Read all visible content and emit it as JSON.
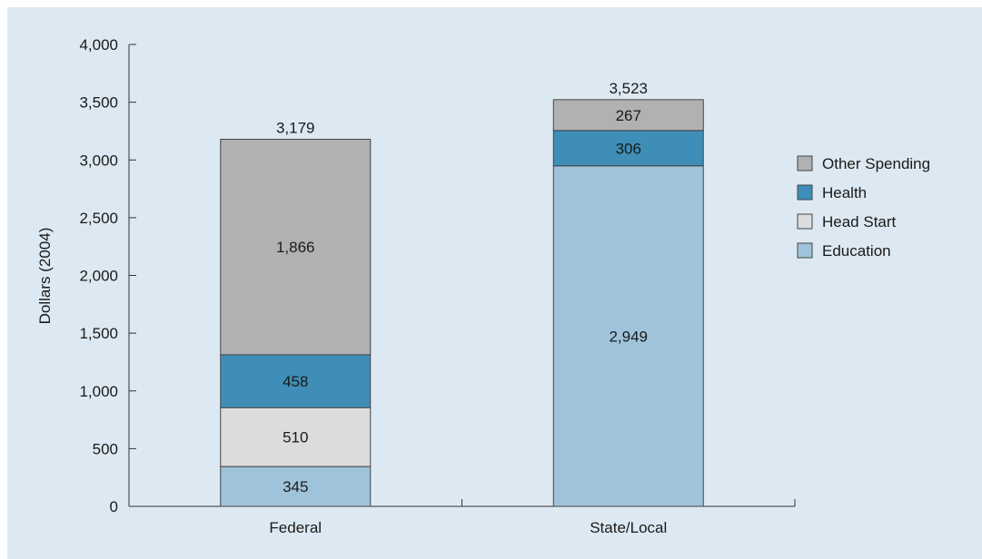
{
  "chart_data": {
    "type": "bar",
    "stacked": true,
    "categories": [
      "Federal",
      "State/Local"
    ],
    "series": [
      {
        "name": "Education",
        "values": [
          345,
          2949
        ],
        "color": "#9fc3da",
        "label_color": "#1a1a1a"
      },
      {
        "name": "Head Start",
        "values": [
          510,
          0
        ],
        "color": "#dcdcdc",
        "label_color": "#1a1a1a"
      },
      {
        "name": "Health",
        "values": [
          458,
          306
        ],
        "color": "#3e8eb7",
        "label_color": "#ffffff"
      },
      {
        "name": "Other Spending",
        "values": [
          1866,
          267
        ],
        "color": "#b1b1b3",
        "label_color": "#1a1a1a"
      }
    ],
    "totals": [
      "3,179",
      "3,523"
    ],
    "ylabel": "Dollars (2004)",
    "xlabel": "",
    "ylim": [
      0,
      4000
    ],
    "yticks": [
      "0",
      "500",
      "1,000",
      "1,500",
      "2,000",
      "2,500",
      "3,000",
      "3,500",
      "4,000"
    ],
    "legend": {
      "position": "right",
      "order": [
        "Other Spending",
        "Health",
        "Head Start",
        "Education"
      ]
    },
    "grid": false,
    "background_color": "#dde9f2"
  }
}
